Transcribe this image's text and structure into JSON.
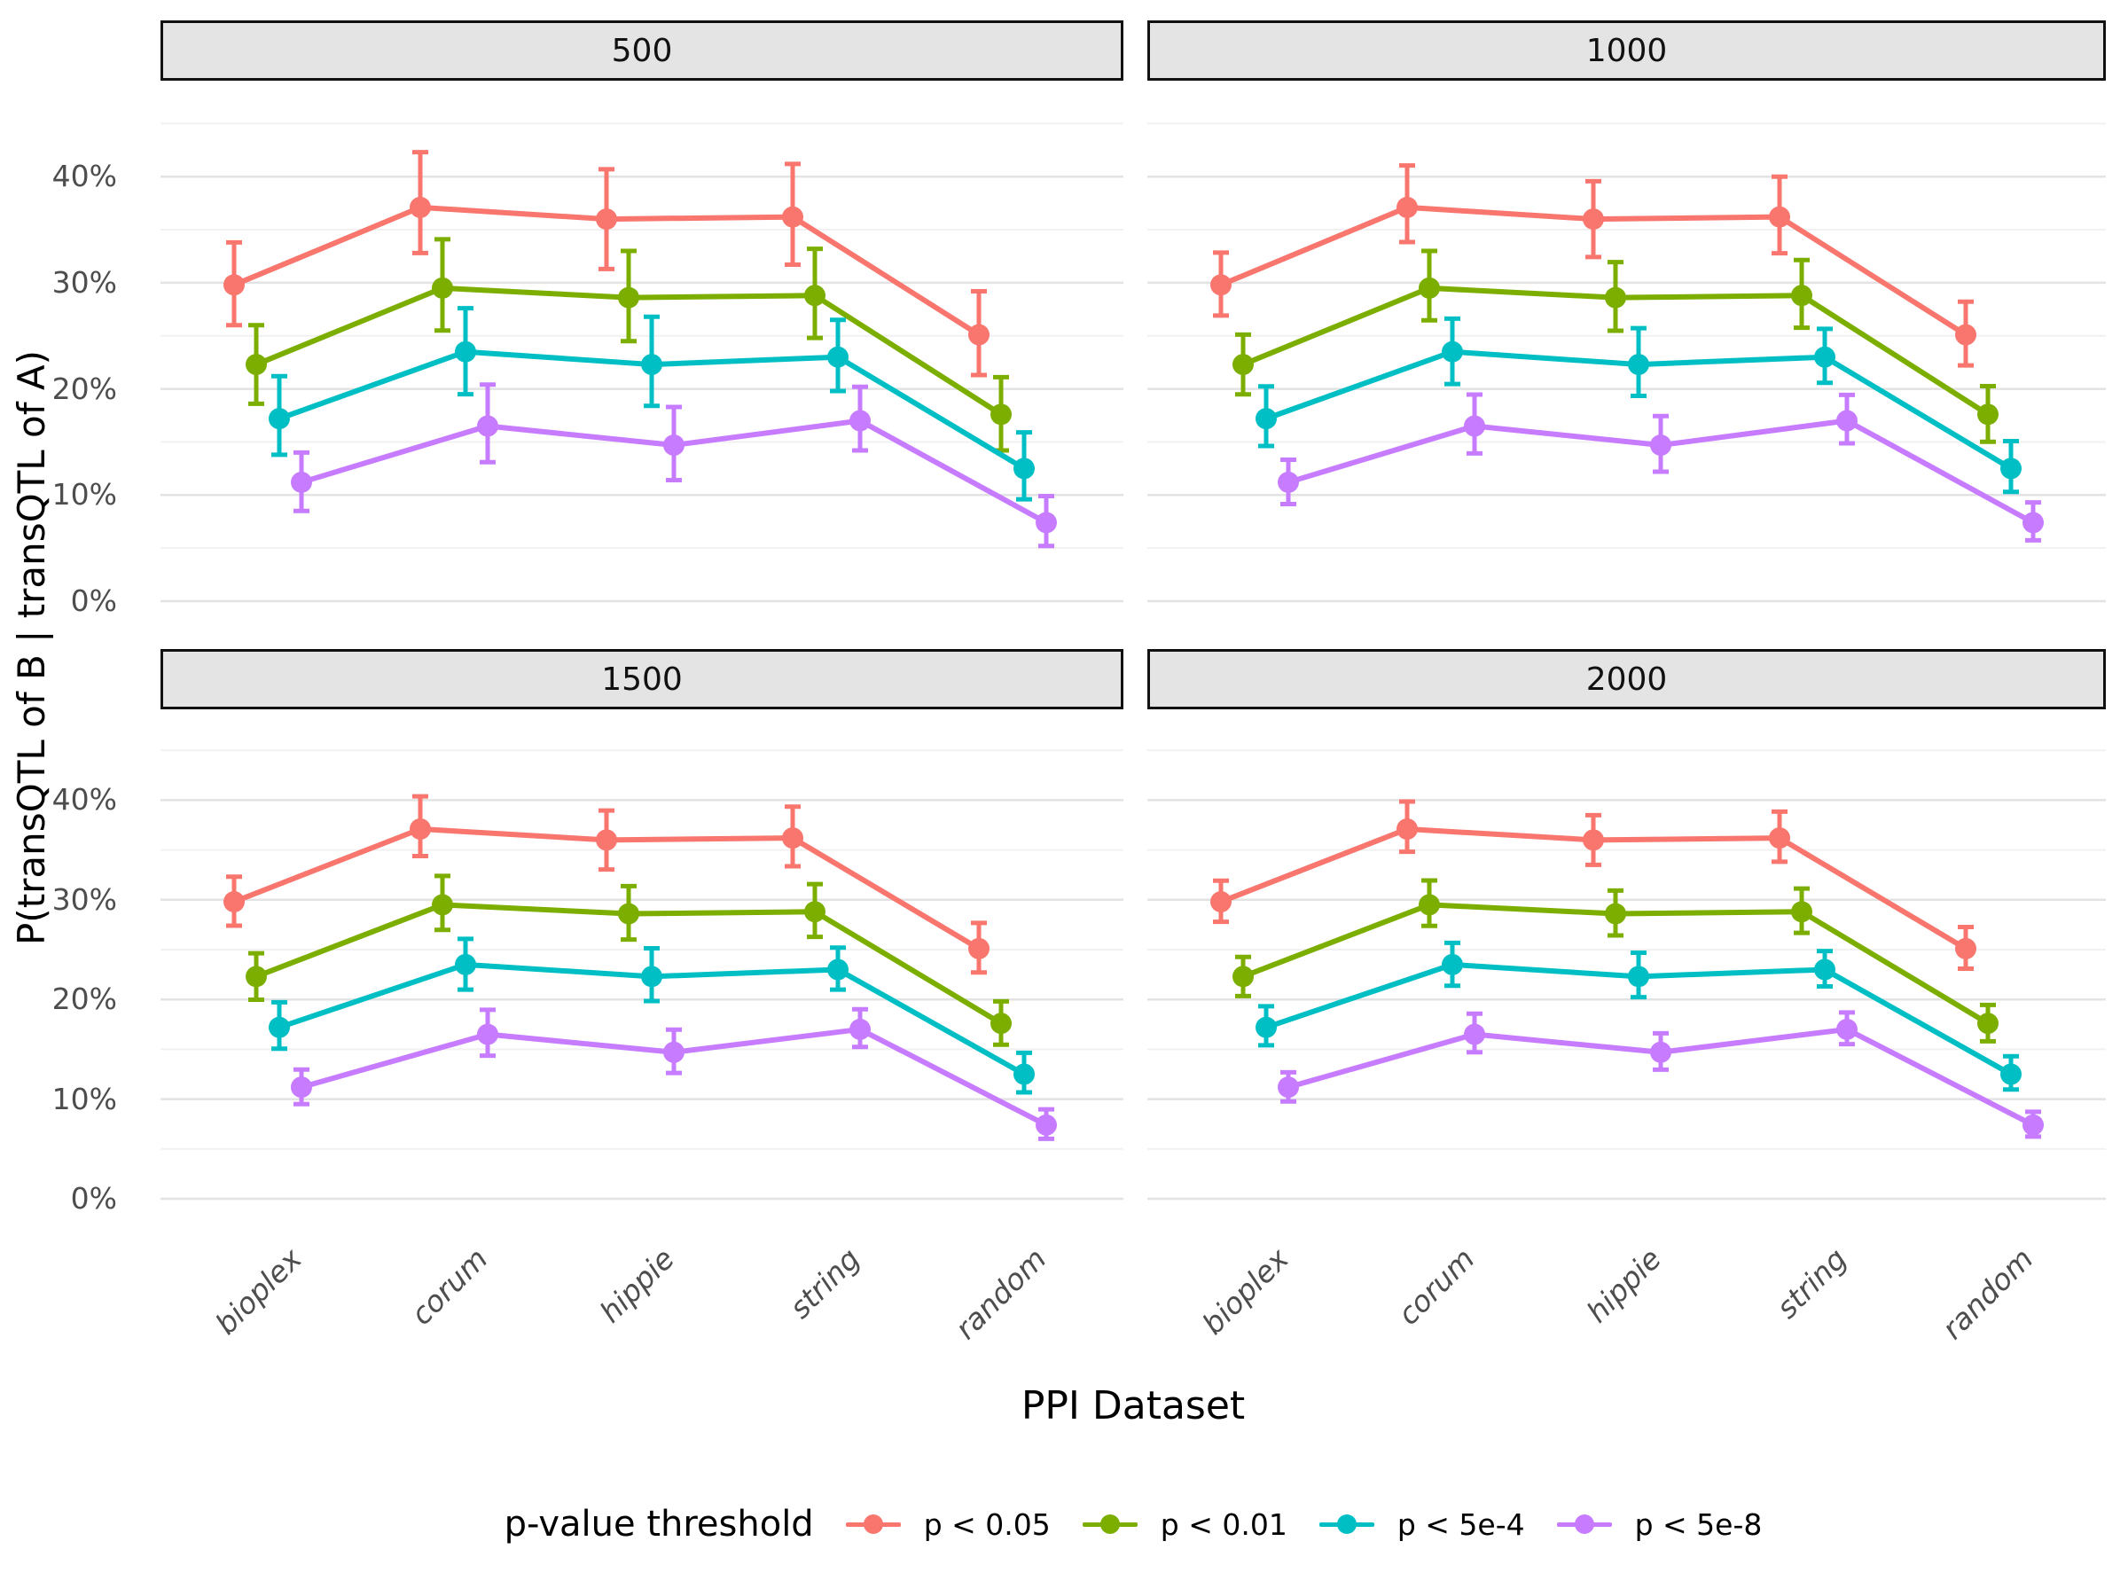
{
  "axes": {
    "y_title": "P(transQTL of B | transQTL of A)",
    "x_title": "PPI Dataset",
    "y_tick_labels": [
      "40%",
      "30%",
      "20%",
      "10%",
      "0%"
    ],
    "y_tick_values": [
      40,
      30,
      20,
      10,
      0
    ],
    "y_minor_values": [
      45,
      35,
      25,
      15,
      5
    ]
  },
  "legend": {
    "title": "p-value threshold",
    "position": "bottom"
  },
  "colors": {
    "strip_fill": "#E4E4E4",
    "strip_border": "#111111",
    "grid_major": "#E3E3E3",
    "grid_minor": "#F1F1F1",
    "tick_text": "#4D4D4D"
  },
  "chart_data": {
    "type": "line",
    "style": "pointrange-with-errorbars",
    "title": "",
    "xlabel": "PPI Dataset",
    "ylabel": "P(transQTL of B | transQTL of A)",
    "ylim": [
      0,
      45
    ],
    "grid": "on",
    "legend_position": "bottom",
    "categories": [
      "bioplex",
      "corum",
      "hippie",
      "string",
      "random"
    ],
    "facets": [
      {
        "label": "500",
        "error_scale": 1.0
      },
      {
        "label": "1000",
        "error_scale": 0.76
      },
      {
        "label": "1500",
        "error_scale": 0.63
      },
      {
        "label": "2000",
        "error_scale": 0.53
      }
    ],
    "series": [
      {
        "name": "p < 0.05",
        "color": "#F8766D",
        "values": [
          29.8,
          37.1,
          36.0,
          36.2,
          25.1
        ],
        "ci_lo": [
          26.0,
          32.8,
          31.3,
          31.7,
          21.3
        ],
        "ci_hi": [
          33.8,
          42.3,
          40.7,
          41.2,
          29.2
        ]
      },
      {
        "name": "p < 0.01",
        "color": "#7CAE00",
        "values": [
          22.3,
          29.5,
          28.6,
          28.8,
          17.6
        ],
        "ci_lo": [
          18.6,
          25.5,
          24.5,
          24.8,
          14.2
        ],
        "ci_hi": [
          26.0,
          34.1,
          33.0,
          33.2,
          21.1
        ]
      },
      {
        "name": "p < 5e-4",
        "color": "#00BFC4",
        "values": [
          17.2,
          23.5,
          22.3,
          23.0,
          12.5
        ],
        "ci_lo": [
          13.8,
          19.5,
          18.4,
          19.8,
          9.6
        ],
        "ci_hi": [
          21.2,
          27.6,
          26.8,
          26.5,
          15.9
        ]
      },
      {
        "name": "p < 5e-8",
        "color": "#C77CFF",
        "values": [
          11.2,
          16.5,
          14.7,
          17.0,
          7.4
        ],
        "ci_lo": [
          8.5,
          13.1,
          11.4,
          14.2,
          5.2
        ],
        "ci_hi": [
          14.0,
          20.4,
          18.3,
          20.2,
          9.9
        ]
      }
    ]
  }
}
